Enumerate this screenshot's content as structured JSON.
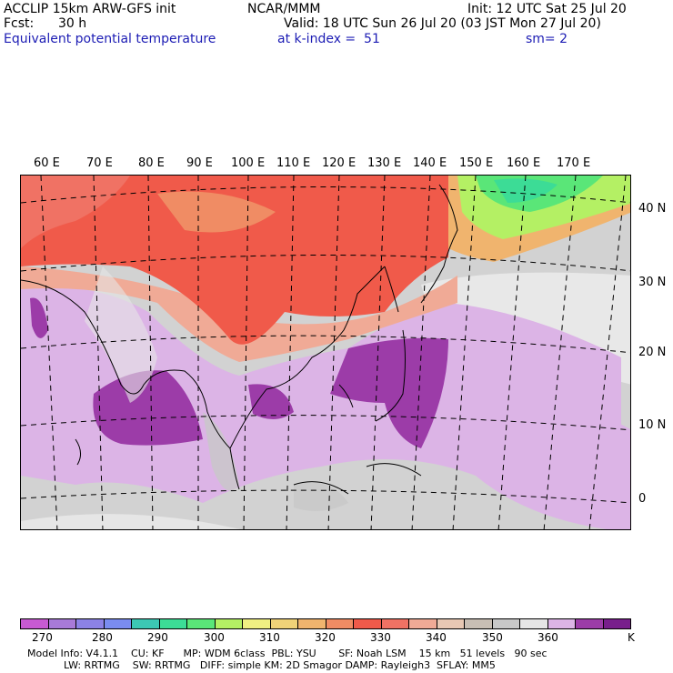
{
  "header": {
    "model": "ACCLIP 15km ARW-GFS init",
    "org": "NCAR/MMM",
    "init": "Init: 12 UTC Sat 25 Jul 20",
    "fcst_label": "Fcst:",
    "fcst_value": "30 h",
    "valid": "Valid: 18 UTC Sun 26 Jul 20 (03 JST Mon 27 Jul 20)",
    "field": "Equivalent potential temperature",
    "level": "at k-index =  51",
    "smooth": "sm= 2"
  },
  "map": {
    "lon_labels": [
      "60 E",
      "70 E",
      "80 E",
      "90 E",
      "100 E",
      "110 E",
      "120 E",
      "130 E",
      "140 E",
      "150 E",
      "160 E",
      "170 E"
    ],
    "lat_labels": [
      "40 N",
      "30 N",
      "20 N",
      "10 N",
      "0"
    ]
  },
  "colorbar": {
    "colors": [
      "#c85ad2",
      "#a87ad8",
      "#8c82e6",
      "#7a8cf0",
      "#3cc8b4",
      "#3cdc96",
      "#5ae678",
      "#b4f064",
      "#f0f082",
      "#f0d278",
      "#f0b46e",
      "#f08c64",
      "#f05a4a",
      "#f07264",
      "#f0aa96",
      "#e8c8b4",
      "#c8beb4",
      "#c8c8c8",
      "#e6e6e6",
      "#dcb4e6",
      "#9c3ca8",
      "#781e8c"
    ],
    "tick_labels": [
      "270",
      "280",
      "290",
      "300",
      "310",
      "320",
      "330",
      "340",
      "350",
      "360",
      "K"
    ]
  },
  "footer": {
    "line1": "Model Info: V4.1.1    CU: KF      MP: WDM 6class  PBL: YSU       SF: Noah LSM    15 km   51 levels   90 sec",
    "line2": "LW: RRTMG    SW: RRTMG   DIFF: simple KM: 2D Smagor DAMP: Rayleigh3  SFLAY: MM5"
  }
}
